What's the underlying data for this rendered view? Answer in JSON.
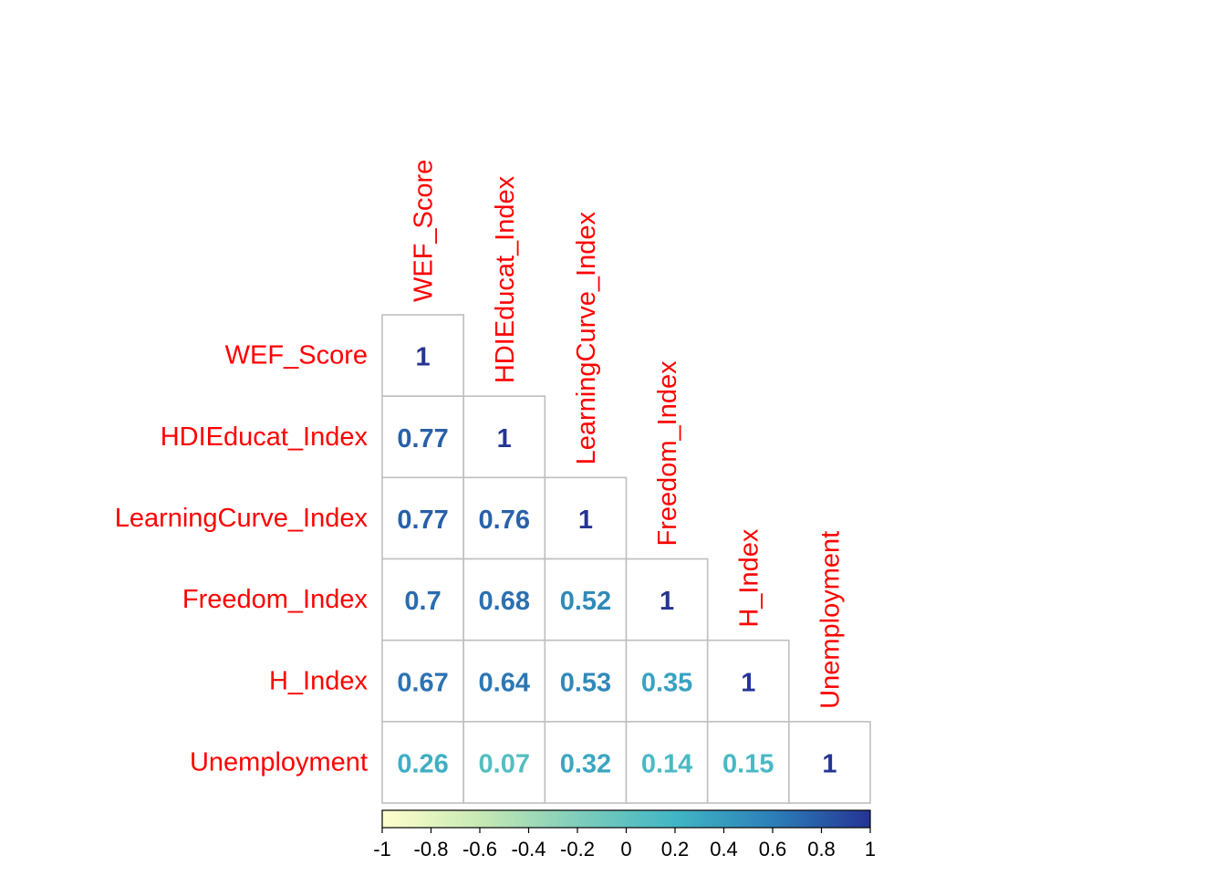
{
  "chart_data": {
    "type": "heatmap",
    "variables": [
      "WEF_Score",
      "HDIEducat_Index",
      "LearningCurve_Index",
      "Freedom_Index",
      "H_Index",
      "Unemployment"
    ],
    "matrix_lower": [
      [
        1
      ],
      [
        0.77,
        1
      ],
      [
        0.77,
        0.76,
        1
      ],
      [
        0.7,
        0.68,
        0.52,
        1
      ],
      [
        0.67,
        0.64,
        0.53,
        0.35,
        1
      ],
      [
        0.26,
        0.07,
        0.32,
        0.14,
        0.15,
        1
      ]
    ],
    "value_labels": [
      [
        "1"
      ],
      [
        "0.77",
        "1"
      ],
      [
        "0.77",
        "0.76",
        "1"
      ],
      [
        "0.7",
        "0.68",
        "0.52",
        "1"
      ],
      [
        "0.67",
        "0.64",
        "0.53",
        "0.35",
        "1"
      ],
      [
        "0.26",
        "0.07",
        "0.32",
        "0.14",
        "0.15",
        "1"
      ]
    ],
    "colorbar": {
      "range": [
        -1,
        1
      ],
      "tick_labels": [
        "-1",
        "-0.8",
        "-0.6",
        "-0.4",
        "-0.2",
        "0",
        "0.2",
        "0.4",
        "0.6",
        "0.8",
        "1"
      ],
      "colors": [
        "#ffffcc",
        "#c7e9b4",
        "#7fcdbb",
        "#41b6c4",
        "#2c7fb8",
        "#253494"
      ]
    },
    "label_color": "#ff0000",
    "grid_color": "#bfbfbf",
    "layout": "lower-triangle"
  }
}
